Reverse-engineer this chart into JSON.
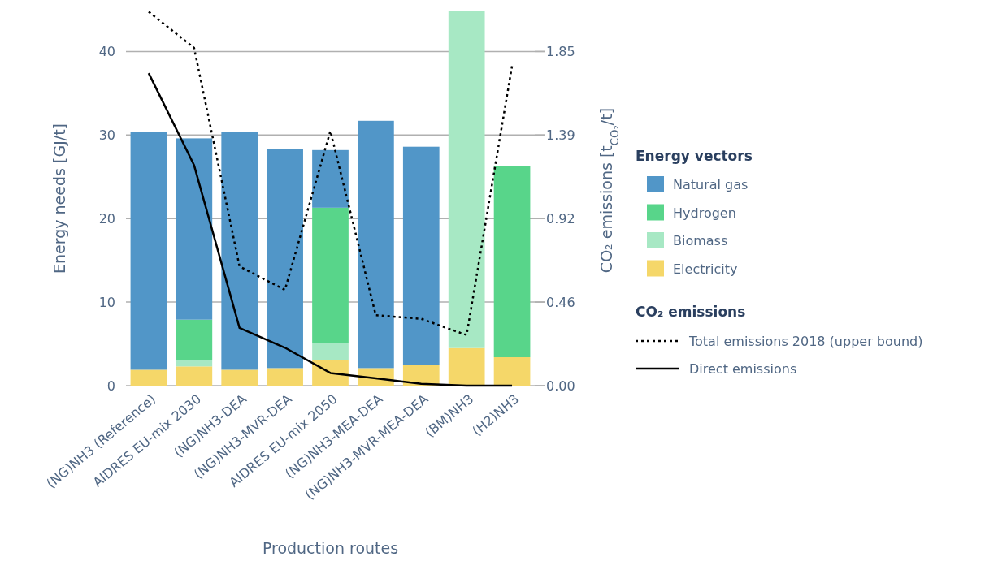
{
  "chart_data": {
    "type": "bar",
    "stacked": true,
    "xlabel": "Production routes",
    "ylabel": "Energy needs [GJ/t]",
    "y2label": "CO₂ emissions [t$_{CO₂}$/t]",
    "legend_title": "Energy vectors",
    "annotations": [
      "CO₂ emissions"
    ],
    "categories": [
      "(NG)NH3 (Reference)",
      "AIDRES EU-mix 2030",
      "(NG)NH3-DEA",
      "(NG)NH3-MVR-DEA",
      "AIDRES EU-mix 2050",
      "(NG)NH3-MEA-DEA",
      "(NG)NH3-MVR-MEA-DEA",
      "(BM)NH3",
      "(H2)NH3"
    ],
    "series": [
      {
        "name": "Electricity",
        "color": "#f5d769",
        "values": [
          1.9,
          2.3,
          1.9,
          2.1,
          3.1,
          2.1,
          2.5,
          4.5,
          3.4
        ]
      },
      {
        "name": "Biomass",
        "color": "#a7e8c4",
        "values": [
          0,
          0.8,
          0,
          0,
          2.0,
          0,
          0,
          40.3,
          0
        ]
      },
      {
        "name": "Hydrogen",
        "color": "#58d58a",
        "values": [
          0,
          4.8,
          0,
          0,
          16.2,
          0,
          0,
          0,
          22.9
        ]
      },
      {
        "name": "Natural gas",
        "color": "#5196c8",
        "values": [
          28.5,
          21.7,
          28.5,
          26.2,
          6.9,
          29.6,
          26.1,
          0,
          0
        ]
      },
      {
        "name": "Total emissions 2018 (upper bound)",
        "type": "line",
        "axis": "y2",
        "line_style": "dotted",
        "color": "#000000",
        "values": [
          2.07,
          1.87,
          0.66,
          0.53,
          1.41,
          0.39,
          0.37,
          0.28,
          1.77
        ]
      },
      {
        "name": "Direct emissions",
        "type": "line",
        "axis": "y2",
        "line_style": "solid",
        "color": "#000000",
        "values": [
          1.73,
          1.22,
          0.32,
          0.21,
          0.07,
          0.04,
          0.01,
          0,
          0
        ]
      }
    ],
    "ylim": [
      0,
      44.8
    ],
    "yticks": [
      0,
      10,
      20,
      30,
      40
    ],
    "y2lim": [
      0,
      2.072
    ],
    "y2ticks": [
      {
        "value": 0,
        "label": "0.00"
      },
      {
        "value": 0.4625,
        "label": "0.46"
      },
      {
        "value": 0.925,
        "label": "0.92"
      },
      {
        "value": 1.3875,
        "label": "1.39"
      },
      {
        "value": 1.85,
        "label": "1.85"
      }
    ],
    "grid": "y",
    "legend": "right"
  }
}
